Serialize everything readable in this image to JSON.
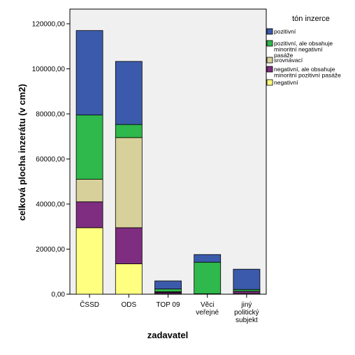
{
  "chart_data": {
    "type": "bar",
    "stacked": true,
    "xlabel": "zadavatel",
    "ylabel": "celková plocha inzerátu (v cm2)",
    "ylim": [
      0,
      120000
    ],
    "yticks": [
      "0,00",
      "20000,00",
      "40000,00",
      "60000,00",
      "80000,00",
      "100000,00",
      "120000,00"
    ],
    "ytick_values": [
      0,
      20000,
      40000,
      60000,
      80000,
      100000,
      120000
    ],
    "categories": [
      [
        "ČSSD"
      ],
      [
        "ODS"
      ],
      [
        "TOP 09"
      ],
      [
        "Věci",
        "veřejné"
      ],
      [
        "jiný",
        "politický",
        "subjekt"
      ]
    ],
    "legend_title": "tón inzerce",
    "legend_position": "right",
    "series": [
      {
        "name": [
          "negativní"
        ],
        "color": "#ffff80",
        "values": [
          29500,
          13500,
          200,
          200,
          300
        ]
      },
      {
        "name": [
          "negativní, ale obsahuje",
          "minoritní pozitivní pasáže"
        ],
        "color": "#7f2d80",
        "values": [
          11500,
          16000,
          600,
          0,
          1000
        ]
      },
      {
        "name": [
          "srovnávací"
        ],
        "color": "#d7d09a",
        "values": [
          10000,
          40000,
          300,
          0,
          0
        ]
      },
      {
        "name": [
          "pozitivní, ale obsahuje",
          "minoritní negativní",
          "pasáže"
        ],
        "color": "#2fb84b",
        "values": [
          28500,
          5800,
          1200,
          14000,
          800
        ]
      },
      {
        "name": [
          "pozitivní"
        ],
        "color": "#3c5aab",
        "values": [
          37500,
          28000,
          3600,
          3400,
          9000
        ]
      }
    ]
  }
}
